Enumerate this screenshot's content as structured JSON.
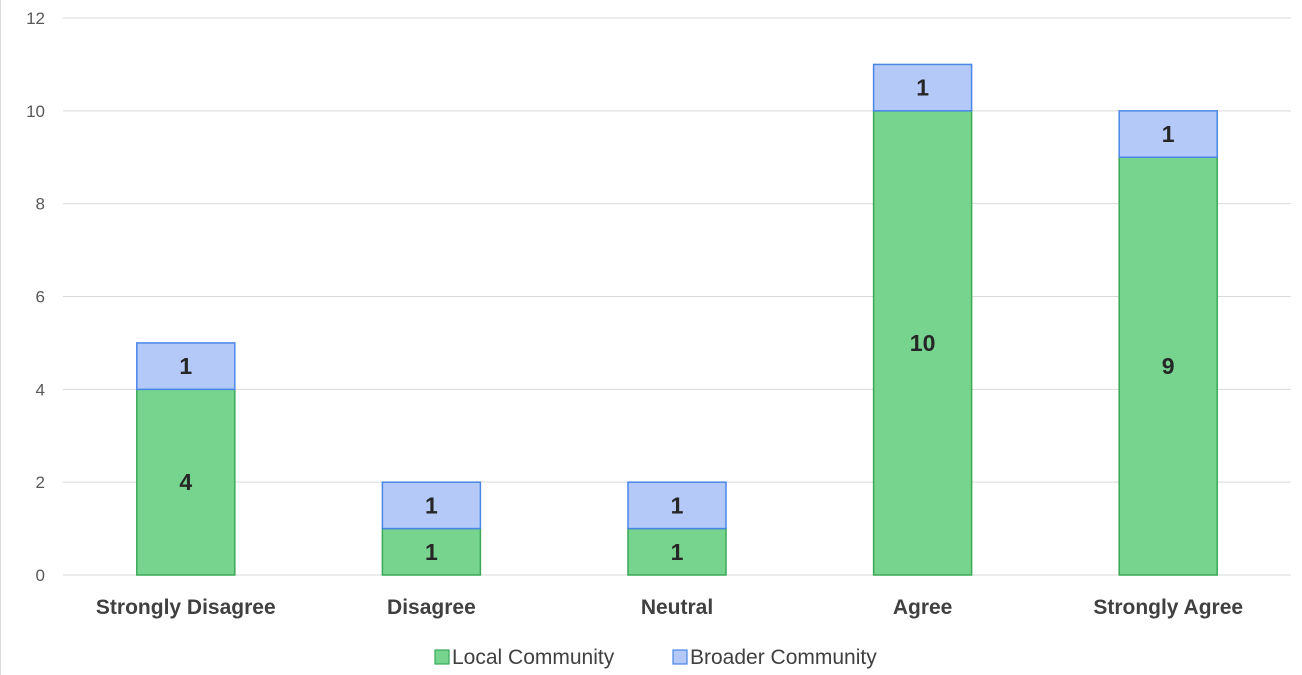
{
  "chart_data": {
    "type": "bar",
    "stacked": true,
    "categories": [
      "Strongly Disagree",
      "Disagree",
      "Neutral",
      "Agree",
      "Strongly Agree"
    ],
    "series": [
      {
        "name": "Local Community",
        "values": [
          4,
          1,
          1,
          10,
          9
        ],
        "color": "#77d48f",
        "stroke": "#3aa856"
      },
      {
        "name": "Broader Community",
        "values": [
          1,
          1,
          1,
          1,
          1
        ],
        "color": "#b4c9f7",
        "stroke": "#4a86e8"
      }
    ],
    "ylim": [
      0,
      12
    ],
    "yticks": [
      0,
      2,
      4,
      6,
      8,
      10,
      12
    ],
    "grid": true,
    "legend_position": "bottom",
    "data_labels": true,
    "title": "",
    "xlabel": "",
    "ylabel": ""
  }
}
